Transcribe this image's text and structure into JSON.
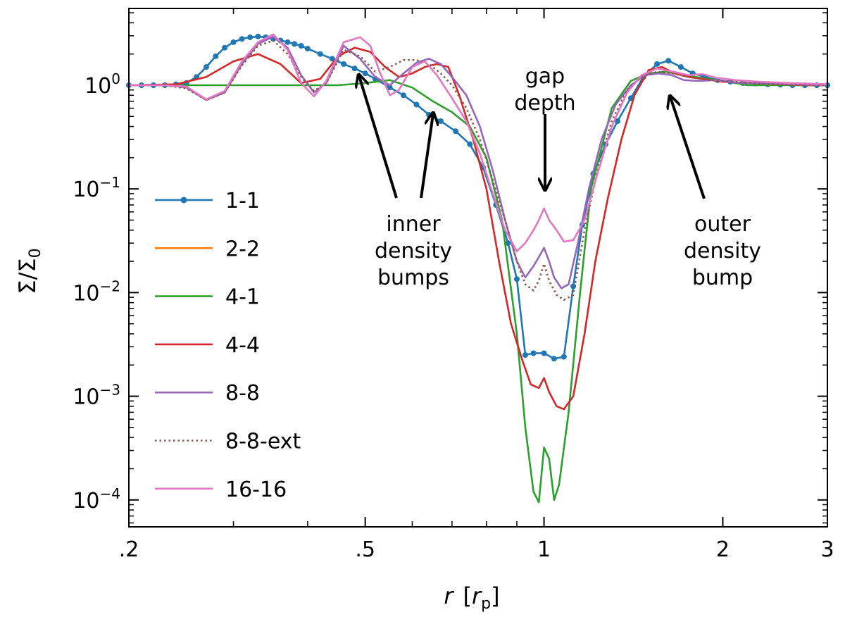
{
  "chart_data": {
    "type": "line",
    "xscale": "log",
    "yscale": "log",
    "xlim": [
      0.2,
      3
    ],
    "ylim": [
      5.5e-05,
      5.5
    ],
    "xlabel": "r  [r_p]",
    "xlabel_main": "r",
    "xlabel_unit_open": "[",
    "xlabel_unit_var": "r",
    "xlabel_unit_sub": "p",
    "xlabel_unit_close": "]",
    "ylabel": "Σ̄/Σ0",
    "ylabel_main": "Σ̄/Σ",
    "ylabel_sub": "0",
    "x_ticks": [
      {
        "value": 0.2,
        "label": ".2"
      },
      {
        "value": 0.5,
        "label": ".5"
      },
      {
        "value": 1,
        "label": "1"
      },
      {
        "value": 2,
        "label": "2"
      },
      {
        "value": 3,
        "label": "3"
      }
    ],
    "y_ticks": [
      {
        "value": 1,
        "base": "10",
        "exp": "0"
      },
      {
        "value": 0.1,
        "base": "10",
        "exp": "−1"
      },
      {
        "value": 0.01,
        "base": "10",
        "exp": "−2"
      },
      {
        "value": 0.001,
        "base": "10",
        "exp": "−3"
      },
      {
        "value": 0.0001,
        "base": "10",
        "exp": "−4"
      }
    ],
    "series": [
      {
        "name": "1-1",
        "color": "#1f77b4",
        "style": "solid",
        "marker": "dot",
        "x": [
          0.2,
          0.21,
          0.22,
          0.23,
          0.24,
          0.25,
          0.26,
          0.27,
          0.28,
          0.29,
          0.3,
          0.31,
          0.32,
          0.33,
          0.34,
          0.35,
          0.36,
          0.37,
          0.38,
          0.39,
          0.4,
          0.42,
          0.44,
          0.46,
          0.48,
          0.5,
          0.52,
          0.55,
          0.58,
          0.61,
          0.64,
          0.67,
          0.71,
          0.75,
          0.79,
          0.83,
          0.87,
          0.9,
          0.93,
          0.96,
          1.0,
          1.04,
          1.08,
          1.12,
          1.16,
          1.21,
          1.27,
          1.33,
          1.4,
          1.47,
          1.55,
          1.62,
          1.7,
          1.78,
          1.87,
          1.96,
          2.06,
          2.16,
          2.27,
          2.38,
          2.5,
          2.62,
          2.75,
          2.88,
          3.0
        ],
        "y": [
          1.0,
          1.0,
          1.0,
          1.0,
          1.02,
          1.05,
          1.2,
          1.5,
          1.9,
          2.3,
          2.6,
          2.8,
          2.9,
          2.95,
          2.9,
          2.8,
          2.7,
          2.6,
          2.5,
          2.4,
          2.25,
          2.0,
          1.8,
          1.6,
          1.45,
          1.3,
          1.15,
          0.95,
          0.8,
          0.65,
          0.52,
          0.45,
          0.36,
          0.27,
          0.16,
          0.07,
          0.03,
          0.0135,
          0.0025,
          0.0026,
          0.0026,
          0.0023,
          0.0024,
          0.0115,
          0.045,
          0.14,
          0.27,
          0.45,
          0.75,
          1.2,
          1.6,
          1.72,
          1.5,
          1.3,
          1.2,
          1.12,
          1.08,
          1.05,
          1.04,
          1.02,
          1.01,
          1.0,
          1.0,
          1.0,
          1.0
        ]
      },
      {
        "name": "2-2",
        "color": "#ff7f0e",
        "style": "solid",
        "marker": "none",
        "x": [],
        "y": []
      },
      {
        "name": "4-1",
        "color": "#2ca02c",
        "style": "solid",
        "marker": "none",
        "x": [
          0.2,
          0.3,
          0.4,
          0.45,
          0.5,
          0.55,
          0.6,
          0.65,
          0.7,
          0.75,
          0.8,
          0.85,
          0.9,
          0.93,
          0.96,
          0.98,
          1.0,
          1.02,
          1.04,
          1.06,
          1.1,
          1.15,
          1.2,
          1.3,
          1.4,
          1.5,
          1.6,
          1.8,
          2.0,
          2.2,
          2.5,
          3.0
        ],
        "y": [
          1.0,
          1.0,
          1.0,
          1.0,
          1.05,
          1.12,
          0.95,
          0.7,
          0.55,
          0.4,
          0.2,
          0.05,
          0.004,
          0.0005,
          0.00012,
          9.5e-05,
          0.00032,
          0.00025,
          0.0001,
          0.00014,
          0.0007,
          0.01,
          0.1,
          0.6,
          1.1,
          1.3,
          1.35,
          1.2,
          1.1,
          1.0,
          1.0,
          1.0
        ]
      },
      {
        "name": "4-4",
        "color": "#d62728",
        "style": "solid",
        "marker": "none",
        "x": [
          0.2,
          0.24,
          0.27,
          0.3,
          0.33,
          0.36,
          0.39,
          0.42,
          0.45,
          0.48,
          0.51,
          0.54,
          0.57,
          0.6,
          0.63,
          0.66,
          0.69,
          0.72,
          0.76,
          0.8,
          0.84,
          0.88,
          0.92,
          0.95,
          0.98,
          1.0,
          1.02,
          1.05,
          1.08,
          1.12,
          1.17,
          1.22,
          1.28,
          1.35,
          1.42,
          1.5,
          1.58,
          1.66,
          1.75,
          1.85,
          2.0,
          2.2,
          2.5,
          2.8,
          3.0
        ],
        "y": [
          1.0,
          1.02,
          1.2,
          1.7,
          2.0,
          1.6,
          1.05,
          1.15,
          1.9,
          2.3,
          2.1,
          1.5,
          1.2,
          1.3,
          1.5,
          1.6,
          1.5,
          0.8,
          0.3,
          0.1,
          0.02,
          0.005,
          0.0022,
          0.0013,
          0.0012,
          0.0015,
          0.0011,
          0.0008,
          0.00075,
          0.001,
          0.004,
          0.02,
          0.08,
          0.3,
          0.8,
          1.4,
          1.5,
          1.3,
          1.2,
          1.15,
          1.08,
          1.05,
          1.02,
          1.0,
          1.0
        ]
      },
      {
        "name": "8-8",
        "color": "#9467bd",
        "style": "solid",
        "marker": "none",
        "x": [
          0.2,
          0.23,
          0.25,
          0.27,
          0.29,
          0.31,
          0.33,
          0.35,
          0.37,
          0.39,
          0.41,
          0.43,
          0.46,
          0.49,
          0.52,
          0.55,
          0.58,
          0.61,
          0.64,
          0.67,
          0.7,
          0.74,
          0.78,
          0.82,
          0.86,
          0.9,
          0.93,
          0.96,
          0.98,
          1.0,
          1.02,
          1.04,
          1.07,
          1.1,
          1.14,
          1.19,
          1.25,
          1.32,
          1.4,
          1.48,
          1.56,
          1.64,
          1.72,
          1.82,
          1.95,
          2.1,
          2.3,
          2.6,
          3.0
        ],
        "y": [
          1.0,
          1.0,
          0.95,
          0.72,
          0.85,
          1.6,
          2.5,
          2.95,
          2.3,
          1.25,
          0.85,
          1.05,
          2.4,
          1.8,
          1.2,
          1.0,
          1.3,
          1.65,
          1.8,
          1.6,
          1.2,
          0.8,
          0.4,
          0.15,
          0.05,
          0.02,
          0.014,
          0.018,
          0.022,
          0.027,
          0.02,
          0.014,
          0.011,
          0.012,
          0.03,
          0.1,
          0.3,
          0.65,
          1.0,
          1.25,
          1.3,
          1.25,
          1.12,
          1.1,
          1.12,
          1.06,
          1.04,
          1.02,
          1.0
        ]
      },
      {
        "name": "8-8-ext",
        "color": "#8c564b",
        "style": "dotted",
        "marker": "none",
        "x": [
          0.2,
          0.23,
          0.25,
          0.27,
          0.29,
          0.31,
          0.33,
          0.35,
          0.37,
          0.39,
          0.41,
          0.43,
          0.46,
          0.49,
          0.52,
          0.55,
          0.58,
          0.61,
          0.64,
          0.67,
          0.7,
          0.74,
          0.78,
          0.82,
          0.86,
          0.9,
          0.93,
          0.96,
          0.98,
          1.0,
          1.02,
          1.05,
          1.08,
          1.12,
          1.17,
          1.23,
          1.3,
          1.38,
          1.46,
          1.55,
          1.65,
          1.75,
          1.9,
          2.1,
          2.3,
          2.6,
          3.0
        ],
        "y": [
          1.0,
          1.0,
          0.93,
          0.72,
          0.85,
          1.55,
          2.4,
          2.7,
          2.0,
          1.2,
          0.88,
          1.05,
          2.2,
          1.9,
          1.35,
          1.5,
          1.75,
          1.75,
          1.6,
          1.3,
          1.0,
          0.6,
          0.3,
          0.12,
          0.05,
          0.02,
          0.012,
          0.0105,
          0.013,
          0.019,
          0.013,
          0.0095,
          0.0085,
          0.0095,
          0.04,
          0.15,
          0.45,
          0.9,
          1.2,
          1.35,
          1.3,
          1.2,
          1.12,
          1.08,
          1.04,
          1.01,
          1.0
        ]
      },
      {
        "name": "16-16",
        "color": "#e377c2",
        "style": "solid",
        "marker": "none",
        "x": [
          0.2,
          0.23,
          0.25,
          0.27,
          0.29,
          0.31,
          0.33,
          0.35,
          0.37,
          0.39,
          0.41,
          0.43,
          0.46,
          0.49,
          0.51,
          0.53,
          0.55,
          0.57,
          0.6,
          0.63,
          0.66,
          0.7,
          0.74,
          0.78,
          0.82,
          0.86,
          0.9,
          0.93,
          0.96,
          0.98,
          1.0,
          1.02,
          1.05,
          1.08,
          1.12,
          1.17,
          1.23,
          1.3,
          1.38,
          1.46,
          1.55,
          1.65,
          1.75,
          1.85,
          1.95,
          2.1,
          2.3,
          2.6,
          3.0
        ],
        "y": [
          1.0,
          1.0,
          0.97,
          0.73,
          0.88,
          1.7,
          2.6,
          3.1,
          2.2,
          1.05,
          0.78,
          1.1,
          2.6,
          2.9,
          2.4,
          1.3,
          0.8,
          0.9,
          1.5,
          1.7,
          1.25,
          0.75,
          0.45,
          0.22,
          0.09,
          0.04,
          0.025,
          0.03,
          0.04,
          0.05,
          0.065,
          0.05,
          0.04,
          0.031,
          0.032,
          0.05,
          0.14,
          0.4,
          0.85,
          1.25,
          1.45,
          1.35,
          1.25,
          1.28,
          1.18,
          1.12,
          1.08,
          1.05,
          1.02
        ]
      }
    ],
    "annotations": [
      {
        "id": "inner",
        "lines": [
          "inner",
          "density",
          "bumps"
        ]
      },
      {
        "id": "gap",
        "lines": [
          "gap",
          "depth"
        ]
      },
      {
        "id": "outer",
        "lines": [
          "outer",
          "density",
          "bump"
        ]
      }
    ],
    "legend_position": "lower-left"
  }
}
